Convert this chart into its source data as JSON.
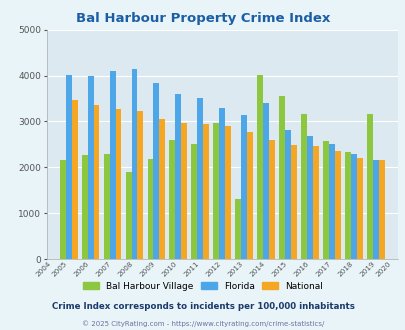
{
  "title": "Bal Harbour Property Crime Index",
  "years": [
    2004,
    2005,
    2006,
    2007,
    2008,
    2009,
    2010,
    2011,
    2012,
    2013,
    2014,
    2015,
    2016,
    2017,
    2018,
    2019,
    2020
  ],
  "bal_harbour": [
    null,
    2170,
    2270,
    2280,
    1900,
    2190,
    2590,
    2500,
    2970,
    1320,
    4020,
    3560,
    3160,
    2580,
    2340,
    3170,
    null
  ],
  "florida": [
    null,
    4020,
    4000,
    4100,
    4140,
    3840,
    3590,
    3510,
    3300,
    3130,
    3400,
    2810,
    2680,
    2510,
    2300,
    2160,
    null
  ],
  "national": [
    null,
    3460,
    3360,
    3280,
    3230,
    3060,
    2960,
    2950,
    2910,
    2760,
    2600,
    2490,
    2460,
    2360,
    2200,
    2150,
    null
  ],
  "green_color": "#8DC63F",
  "blue_color": "#4DA6E8",
  "orange_color": "#F5A623",
  "bg_color": "#E8F4F8",
  "plot_bg": "#DCE9F0",
  "title_color": "#1B5EA6",
  "subtitle_color": "#1B3A6B",
  "footer_color": "#7070A0",
  "ylim": [
    0,
    5000
  ],
  "yticks": [
    0,
    1000,
    2000,
    3000,
    4000,
    5000
  ],
  "legend_labels": [
    "Bal Harbour Village",
    "Florida",
    "National"
  ],
  "subtitle": "Crime Index corresponds to incidents per 100,000 inhabitants",
  "footer": "© 2025 CityRating.com - https://www.cityrating.com/crime-statistics/"
}
